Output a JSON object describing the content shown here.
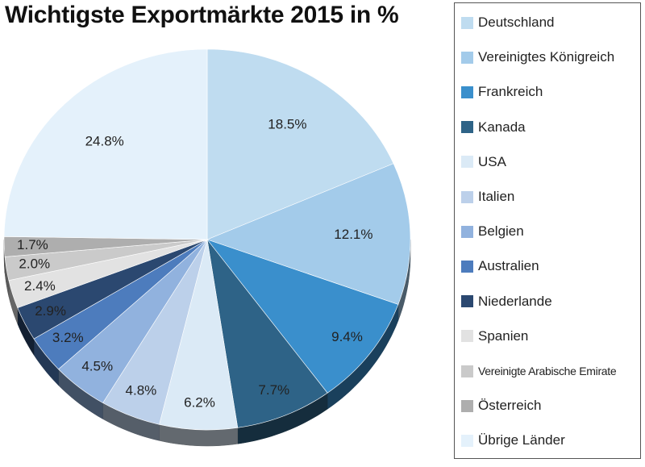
{
  "chart_data": {
    "type": "pie",
    "title": "Wichtigste Exportmärkte 2015 in %",
    "legend_position": "right",
    "slices": [
      {
        "name": "Deutschland",
        "value": 18.5,
        "label": "18.5%",
        "color": "#bfdcf0"
      },
      {
        "name": "Vereinigtes Königreich",
        "value": 12.1,
        "label": "12.1%",
        "color": "#a3cbea"
      },
      {
        "name": "Frankreich",
        "value": 9.4,
        "label": "9.4%",
        "color": "#3a8fcc"
      },
      {
        "name": "Kanada",
        "value": 7.7,
        "label": "7.7%",
        "color": "#2e6387"
      },
      {
        "name": "USA",
        "value": 6.2,
        "label": "6.2%",
        "color": "#dbeaf6"
      },
      {
        "name": "Italien",
        "value": 4.8,
        "label": "4.8%",
        "color": "#bcd0ea"
      },
      {
        "name": "Belgien",
        "value": 4.5,
        "label": "4.5%",
        "color": "#91b2de"
      },
      {
        "name": "Australien",
        "value": 3.2,
        "label": "3.2%",
        "color": "#4d7cbd"
      },
      {
        "name": "Niederlande",
        "value": 2.9,
        "label": "2.9%",
        "color": "#2b4870"
      },
      {
        "name": "Spanien",
        "value": 2.4,
        "label": "2.4%",
        "color": "#e2e2e2"
      },
      {
        "name": "Vereinigte Arabische Emirate",
        "value": 2.0,
        "label": "2.0%",
        "color": "#cacaca"
      },
      {
        "name": "Österreich",
        "value": 1.7,
        "label": "1.7%",
        "color": "#aeaeae"
      },
      {
        "name": "Übrige Länder",
        "value": 24.8,
        "label": "24.8%",
        "color": "#e4f1fb"
      }
    ]
  }
}
